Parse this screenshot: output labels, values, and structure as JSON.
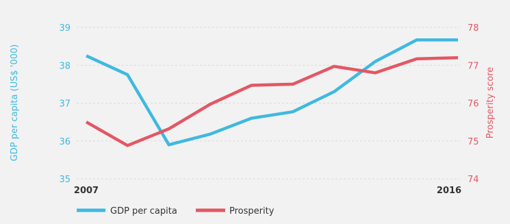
{
  "chart_data": {
    "type": "line",
    "x": [
      2007,
      2008,
      2009,
      2010,
      2011,
      2012,
      2013,
      2014,
      2015,
      2016
    ],
    "x_tick_labels": [
      "2007",
      "2016"
    ],
    "series": [
      {
        "name": "GDP per capita",
        "axis": "left",
        "color": "#3fb9e0",
        "values": [
          38.25,
          37.75,
          35.9,
          36.18,
          36.6,
          36.77,
          37.3,
          38.1,
          38.67,
          38.67
        ]
      },
      {
        "name": "Prosperity",
        "axis": "right",
        "color": "#e35764",
        "values": [
          75.5,
          74.88,
          75.32,
          75.97,
          76.47,
          76.5,
          76.97,
          76.8,
          77.17,
          77.2
        ]
      }
    ],
    "y_left": {
      "label": "GDP per capita (US$ '000)",
      "ylim": [
        35,
        39
      ],
      "ticks": [
        "35",
        "36",
        "37",
        "38",
        "39"
      ],
      "color": "#3fb9e0"
    },
    "y_right": {
      "label": "Prosperity score",
      "ylim": [
        74,
        78
      ],
      "ticks": [
        "74",
        "75",
        "76",
        "77",
        "78"
      ],
      "color": "#e35764"
    },
    "grid": true,
    "legend_position": "bottom-left"
  }
}
